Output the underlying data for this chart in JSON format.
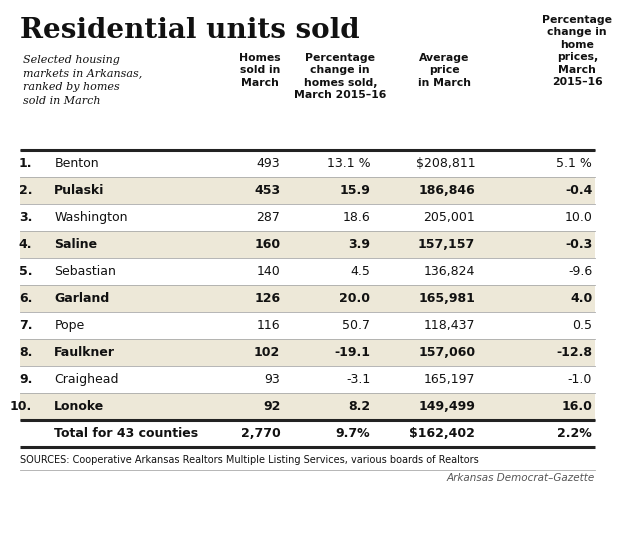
{
  "title": "Residential units sold",
  "subtitle": "Selected housing\nmarkets in Arkansas,\nranked by homes\nsold in March",
  "col_headers": [
    "",
    "Homes\nsold in\nMarch",
    "Percentage\nchange in\nhomes sold,\nMarch 2015–16",
    "Average\nprice\nin March",
    "Percentage\nchange in\nhome\nprices,\nMarch\n2015–16"
  ],
  "rows": [
    [
      "1.",
      "Benton",
      "493",
      "13.1 %",
      "$208,811",
      "5.1 %"
    ],
    [
      "2.",
      "Pulaski",
      "453",
      "15.9",
      "186,846",
      "-0.4"
    ],
    [
      "3.",
      "Washington",
      "287",
      "18.6",
      "205,001",
      "10.0"
    ],
    [
      "4.",
      "Saline",
      "160",
      "3.9",
      "157,157",
      "-0.3"
    ],
    [
      "5.",
      "Sebastian",
      "140",
      "4.5",
      "136,824",
      "-9.6"
    ],
    [
      "6.",
      "Garland",
      "126",
      "20.0",
      "165,981",
      "4.0"
    ],
    [
      "7.",
      "Pope",
      "116",
      "50.7",
      "118,437",
      "0.5"
    ],
    [
      "8.",
      "Faulkner",
      "102",
      "-19.1",
      "157,060",
      "-12.8"
    ],
    [
      "9.",
      "Craighead",
      "93",
      "-3.1",
      "165,197",
      "-1.0"
    ],
    [
      "10.",
      "Lonoke",
      "92",
      "8.2",
      "149,499",
      "16.0"
    ]
  ],
  "total_row": [
    "Total for 43 counties",
    "2,770",
    "9.7%",
    "$162,402",
    "2.2%"
  ],
  "shaded_rows": [
    1,
    3,
    5,
    7,
    9
  ],
  "shaded_color": "#ede8d8",
  "white_color": "#ffffff",
  "thick_line_color": "#222222",
  "thin_line_color": "#aaaaaa",
  "sources_text": "SOURCES: Cooperative Arkansas Realtors Multiple Listing Services, various boards of Realtors",
  "credit_text": "Arkansas Democrat–Gazette",
  "background_color": "#ffffff",
  "title_fontsize": 20,
  "subtitle_fontsize": 8,
  "header_fontsize": 7.8,
  "body_fontsize": 9,
  "sources_fontsize": 7,
  "credit_fontsize": 7.5
}
